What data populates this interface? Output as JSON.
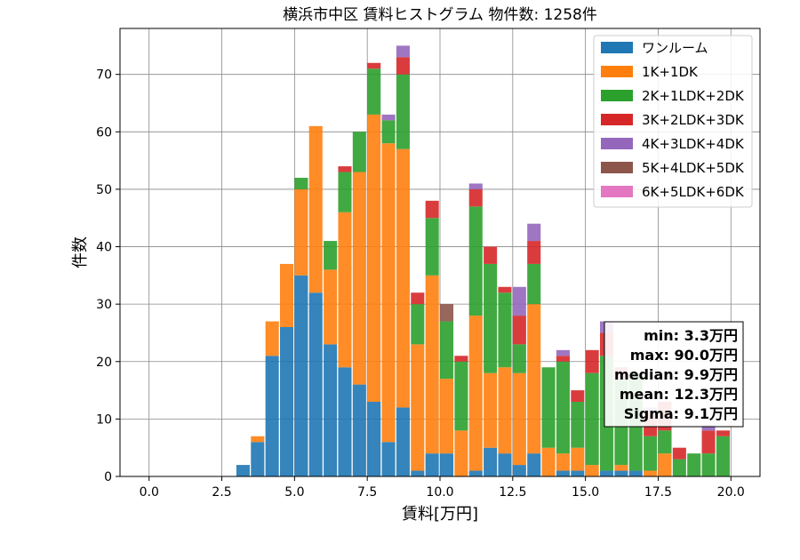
{
  "chart_data": {
    "type": "bar",
    "stacked": true,
    "title": "横浜市中区 賃料ヒストグラム  物件数: 1258件",
    "xlabel": "賃料[万円]",
    "ylabel": "件数",
    "xlim": [
      -1.0,
      21.0
    ],
    "ylim": [
      0,
      78
    ],
    "xticks": [
      0.0,
      2.5,
      5.0,
      7.5,
      10.0,
      12.5,
      15.0,
      17.5,
      20.0
    ],
    "xtick_labels": [
      "0.0",
      "2.5",
      "5.0",
      "7.5",
      "10.0",
      "12.5",
      "15.0",
      "17.5",
      "20.0"
    ],
    "yticks": [
      0,
      10,
      20,
      30,
      40,
      50,
      60,
      70
    ],
    "ytick_labels": [
      "0",
      "10",
      "20",
      "30",
      "40",
      "50",
      "60",
      "70"
    ],
    "grid": true,
    "legend_position": "top-right",
    "bin_width": 0.5,
    "bin_starts": [
      3.0,
      3.5,
      4.0,
      4.5,
      5.0,
      5.5,
      6.0,
      6.5,
      7.0,
      7.5,
      8.0,
      8.5,
      9.0,
      9.5,
      10.0,
      10.5,
      11.0,
      11.5,
      12.0,
      12.5,
      13.0,
      13.5,
      14.0,
      14.5,
      15.0,
      15.5,
      16.0,
      16.5,
      17.0,
      17.5,
      18.0,
      18.5,
      19.0,
      19.5
    ],
    "series": [
      {
        "name": "ワンルーム",
        "color": "#1f77b4",
        "values": [
          2,
          6,
          21,
          26,
          35,
          32,
          23,
          19,
          16,
          13,
          6,
          12,
          1,
          4,
          4,
          0,
          1,
          5,
          4,
          2,
          4,
          0,
          1,
          1,
          0,
          1,
          1,
          1,
          0,
          0,
          0,
          0,
          0,
          0
        ]
      },
      {
        "name": "1K+1DK",
        "color": "#ff7f0e",
        "values": [
          0,
          1,
          6,
          11,
          15,
          29,
          13,
          27,
          37,
          50,
          52,
          45,
          22,
          31,
          13,
          8,
          27,
          13,
          15,
          16,
          26,
          5,
          3,
          4,
          2,
          0,
          1,
          0,
          1,
          4,
          0,
          0,
          0,
          0
        ]
      },
      {
        "name": "2K+1LDK+2DK",
        "color": "#2ca02c",
        "values": [
          0,
          0,
          0,
          0,
          2,
          0,
          5,
          7,
          7,
          8,
          4,
          13,
          7,
          10,
          10,
          12,
          19,
          19,
          13,
          5,
          7,
          14,
          16,
          8,
          16,
          20,
          15,
          17,
          6,
          4,
          3,
          4,
          4,
          7
        ]
      },
      {
        "name": "3K+2LDK+3DK",
        "color": "#d62728",
        "values": [
          0,
          0,
          0,
          0,
          0,
          0,
          0,
          1,
          0,
          1,
          0,
          3,
          2,
          3,
          0,
          1,
          3,
          3,
          1,
          5,
          4,
          0,
          1,
          2,
          4,
          4,
          2,
          0,
          4,
          5,
          2,
          0,
          4,
          1
        ]
      },
      {
        "name": "4K+3LDK+4DK",
        "color": "#9467bd",
        "values": [
          0,
          0,
          0,
          0,
          0,
          0,
          0,
          0,
          0,
          0,
          1,
          2,
          0,
          0,
          0,
          0,
          1,
          0,
          0,
          5,
          3,
          0,
          1,
          0,
          0,
          2,
          0,
          0,
          1,
          0,
          0,
          0,
          1,
          0
        ]
      },
      {
        "name": "5K+4LDK+5DK",
        "color": "#8c564b",
        "values": [
          0,
          0,
          0,
          0,
          0,
          0,
          0,
          0,
          0,
          0,
          0,
          0,
          0,
          0,
          3,
          0,
          0,
          0,
          0,
          0,
          0,
          0,
          0,
          0,
          0,
          0,
          0,
          0,
          0,
          0,
          0,
          0,
          0,
          0
        ]
      },
      {
        "name": "6K+5LDK+6DK",
        "color": "#e377c2",
        "values": [
          0,
          0,
          0,
          0,
          0,
          0,
          0,
          0,
          0,
          0,
          0,
          0,
          0,
          0,
          0,
          0,
          0,
          0,
          0,
          0,
          0,
          0,
          0,
          0,
          0,
          0,
          0,
          0,
          0,
          0,
          0,
          0,
          0,
          0
        ]
      }
    ],
    "stats": [
      "min: 3.3万円",
      "max: 90.0万円",
      "median: 9.9万円",
      "mean: 12.3万円",
      "Sigma: 9.1万円"
    ]
  }
}
